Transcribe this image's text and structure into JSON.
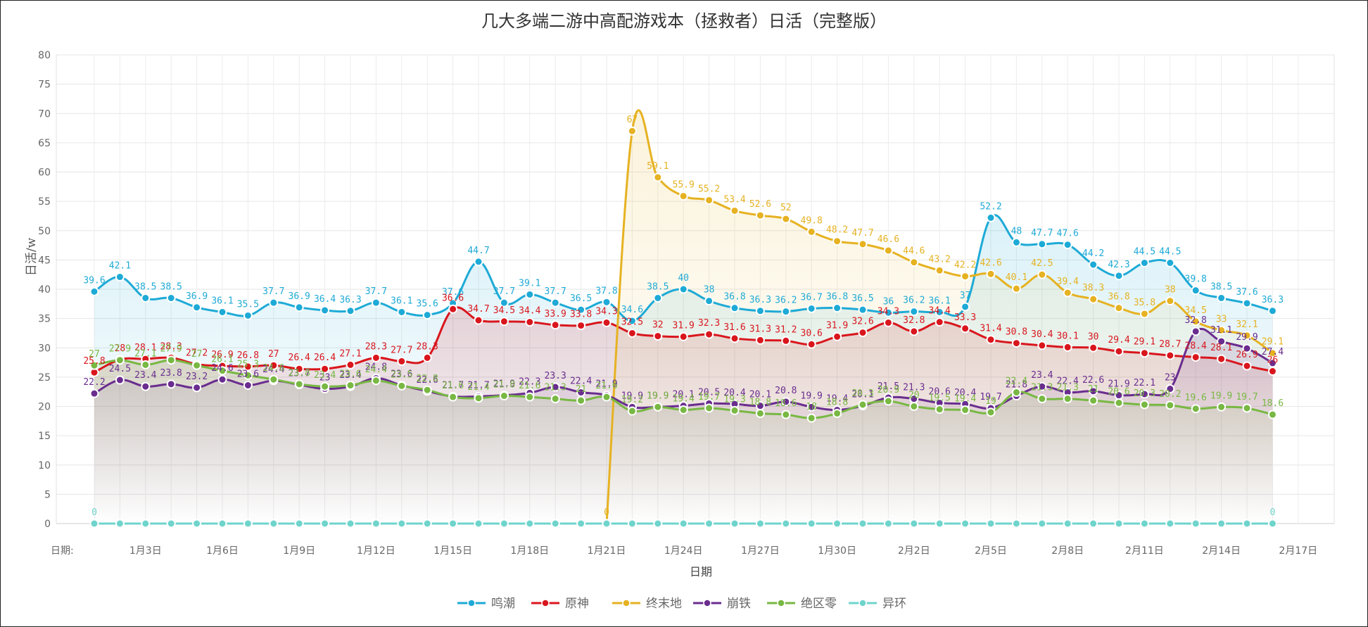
{
  "chart_data": {
    "type": "line",
    "title": "几大多端二游中高配游戏本（拯救者）日活（完整版）",
    "xlabel": "日期",
    "ylabel": "日活/w",
    "x_prefix_label": "日期:",
    "ylim": [
      0,
      80
    ],
    "y_ticks": [
      0,
      5,
      10,
      15,
      20,
      25,
      30,
      35,
      40,
      45,
      50,
      55,
      60,
      65,
      70,
      75,
      80
    ],
    "x": [
      "1月1日",
      "1月2日",
      "1月3日",
      "1月4日",
      "1月5日",
      "1月6日",
      "1月7日",
      "1月8日",
      "1月9日",
      "1月10日",
      "1月11日",
      "1月12日",
      "1月13日",
      "1月14日",
      "1月15日",
      "1月16日",
      "1月17日",
      "1月18日",
      "1月19日",
      "1月20日",
      "1月21日",
      "1月22日",
      "1月23日",
      "1月24日",
      "1月25日",
      "1月26日",
      "1月27日",
      "1月28日",
      "1月29日",
      "1月30日",
      "1月31日",
      "2月1日",
      "2月2日",
      "2月3日",
      "2月4日",
      "2月5日",
      "2月6日",
      "2月7日",
      "2月8日",
      "2月9日",
      "2月10日",
      "2月11日",
      "2月12日",
      "2月13日",
      "2月14日",
      "2月15日",
      "2月16日"
    ],
    "x_ticks": [
      "1月3日",
      "1月6日",
      "1月9日",
      "1月12日",
      "1月15日",
      "1月18日",
      "1月21日",
      "1月24日",
      "1月27日",
      "1月30日",
      "2月2日",
      "2月5日",
      "2月8日",
      "2月11日",
      "2月14日",
      "2月17日"
    ],
    "grid": true,
    "legend_position": "bottom",
    "series": [
      {
        "name": "鸣潮",
        "color": "#1eaad6",
        "values": [
          39.6,
          42.1,
          38.5,
          38.5,
          36.9,
          36.1,
          35.5,
          37.7,
          36.9,
          36.4,
          36.3,
          37.7,
          36.1,
          35.6,
          37.6,
          44.7,
          37.7,
          39.1,
          37.7,
          36.5,
          37.8,
          34.6,
          38.5,
          40,
          38,
          36.8,
          36.3,
          36.2,
          36.7,
          36.8,
          36.5,
          36,
          36.2,
          36.1,
          37,
          52.2,
          48,
          47.7,
          47.6,
          44.2,
          42.3,
          44.5,
          44.5,
          39.8,
          38.5,
          37.6,
          36.3
        ]
      },
      {
        "name": "原神",
        "color": "#d9161d",
        "values": [
          25.8,
          28,
          28.1,
          28.3,
          27.2,
          26.9,
          26.8,
          27,
          26.4,
          26.4,
          27.1,
          28.3,
          27.7,
          28.3,
          36.6,
          34.7,
          34.5,
          34.4,
          33.9,
          33.8,
          34.3,
          32.5,
          32,
          31.9,
          32.3,
          31.6,
          31.3,
          31.2,
          30.6,
          31.9,
          32.6,
          34.3,
          32.8,
          34.4,
          33.3,
          31.4,
          30.8,
          30.4,
          30.1,
          30,
          29.4,
          29.1,
          28.7,
          28.4,
          28.1,
          26.9,
          26
        ]
      },
      {
        "name": "终末地",
        "color": "#e6b222",
        "values": [
          null,
          null,
          null,
          null,
          null,
          null,
          null,
          null,
          null,
          null,
          null,
          null,
          null,
          null,
          null,
          null,
          null,
          null,
          null,
          null,
          0,
          67,
          59.1,
          55.9,
          55.2,
          53.4,
          52.6,
          52,
          49.8,
          48.2,
          47.7,
          46.6,
          44.6,
          43.2,
          42.2,
          42.6,
          40.1,
          42.5,
          39.4,
          38.3,
          36.8,
          35.8,
          38,
          34.5,
          33,
          32.1,
          29.1
        ]
      },
      {
        "name": "崩铁",
        "color": "#6a2d8f",
        "values": [
          22.2,
          24.5,
          23.4,
          23.8,
          23.2,
          24.6,
          23.6,
          24.4,
          23.7,
          23,
          23.4,
          24.8,
          23.6,
          22.6,
          21.7,
          21.7,
          21.9,
          22.3,
          23.3,
          22.4,
          21.9,
          19.9,
          19.9,
          20.1,
          20.5,
          20.4,
          20.1,
          20.8,
          19.9,
          19.4,
          20.1,
          21.5,
          21.3,
          20.6,
          20.4,
          19.7,
          21.8,
          23.4,
          22.4,
          22.6,
          21.9,
          22.1,
          23,
          32.8,
          31.1,
          29.9,
          27.4
        ]
      },
      {
        "name": "绝区零",
        "color": "#78b843",
        "values": [
          27,
          27.9,
          27.1,
          27.9,
          27,
          26.1,
          25.3,
          24.6,
          23.8,
          23.4,
          23.6,
          24.4,
          23.5,
          22.8,
          21.6,
          21.4,
          21.8,
          21.6,
          21.3,
          21,
          21.6,
          19.2,
          19.9,
          19.4,
          19.7,
          19.3,
          18.8,
          18.6,
          18,
          18.8,
          20.3,
          20.9,
          20,
          19.5,
          19.4,
          19,
          22.4,
          21.3,
          21.3,
          21,
          20.6,
          20.3,
          20.2,
          19.6,
          19.9,
          19.7,
          18.6
        ]
      },
      {
        "name": "异环",
        "color": "#6fd4cc",
        "values": [
          0,
          0,
          0,
          0,
          0,
          0,
          0,
          0,
          0,
          0,
          0,
          0,
          0,
          0,
          0,
          0,
          0,
          0,
          0,
          0,
          0,
          0,
          0,
          0,
          0,
          0,
          0,
          0,
          0,
          0,
          0,
          0,
          0,
          0,
          0,
          0,
          0,
          0,
          0,
          0,
          0,
          0,
          0,
          0,
          0,
          0,
          0
        ]
      }
    ],
    "visible_label_indices": {
      "异环": [
        0,
        46
      ]
    }
  }
}
